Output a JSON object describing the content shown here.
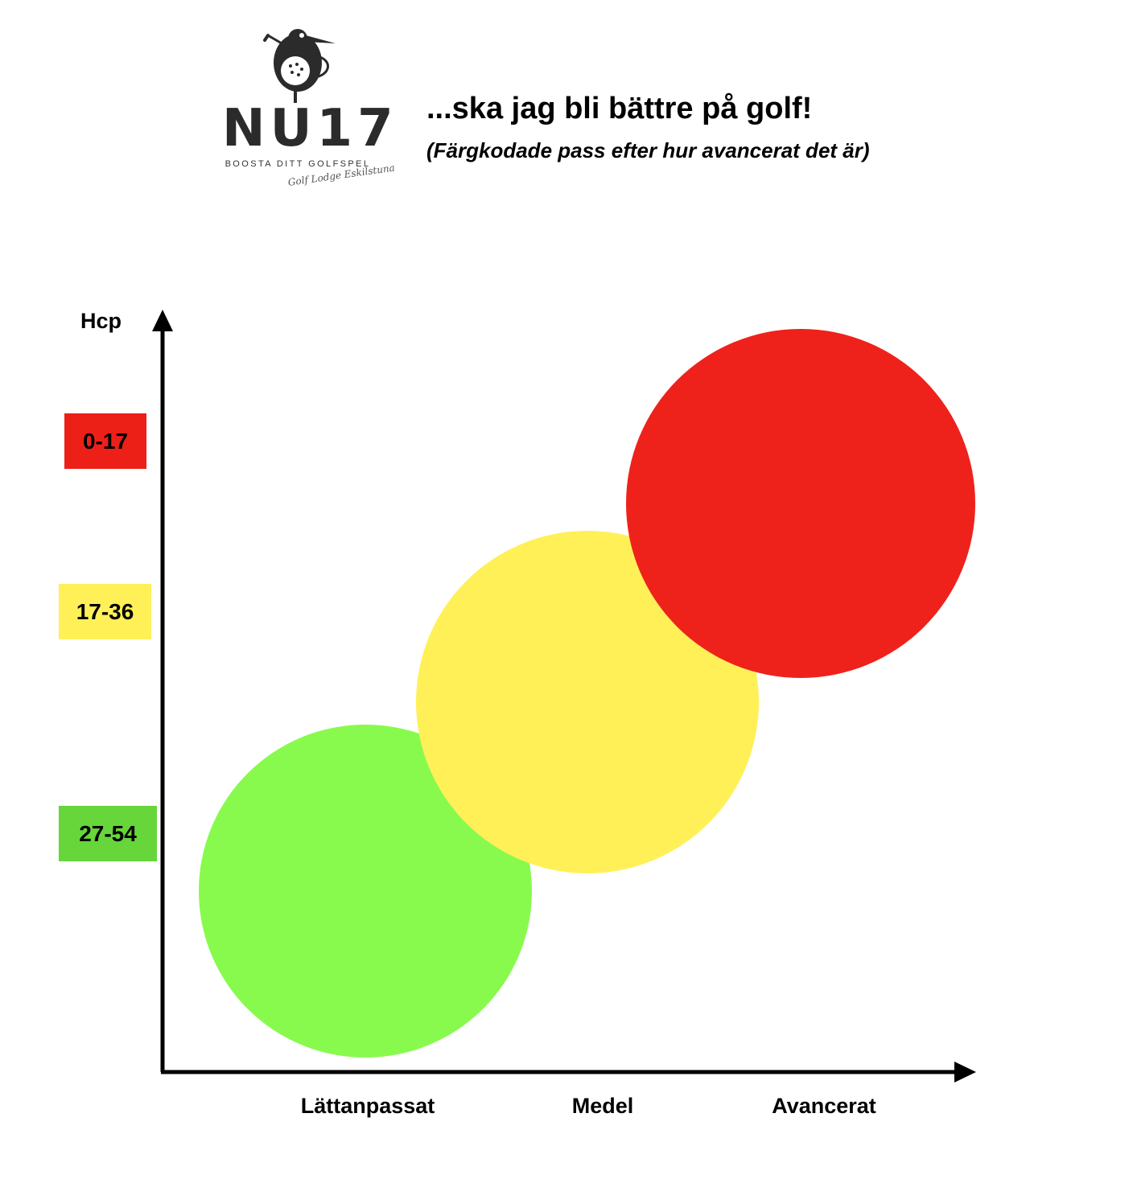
{
  "logo": {
    "wordmark": "NU17",
    "tagline": "BOOSTA DITT GOLFSPEL",
    "script": "Golf Lodge Eskilstuna",
    "colors": {
      "mark": "#2b2b2b"
    }
  },
  "header": {
    "title": "...ska jag bli bättre på golf!",
    "subtitle": "(Färgkodade pass efter hur avancerat det är)"
  },
  "diagram": {
    "y_axis_label": "Hcp",
    "y_bands": [
      {
        "label": "0-17",
        "color": "#ed2018"
      },
      {
        "label": "17-36",
        "color": "#fff058"
      },
      {
        "label": "27-54",
        "color": "#66d63a"
      }
    ],
    "x_labels": [
      "Lättanpassat",
      "Medel",
      "Avancerat"
    ],
    "circles": [
      {
        "level": "Lättanpassat",
        "hcp": "27-54",
        "color": "#88fa4e"
      },
      {
        "level": "Medel",
        "hcp": "17-36",
        "color": "#fff058"
      },
      {
        "level": "Avancerat",
        "hcp": "0-17",
        "color": "#ee221b"
      }
    ],
    "axis_color": "#000000"
  }
}
